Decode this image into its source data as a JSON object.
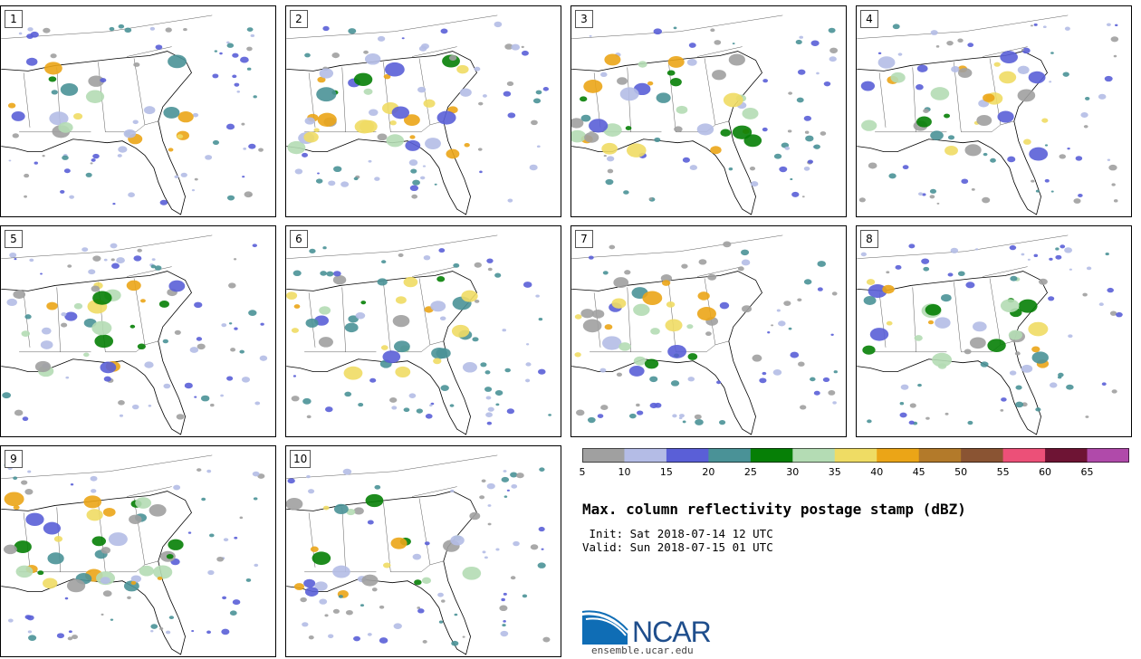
{
  "panels": [
    {
      "label": "1"
    },
    {
      "label": "2"
    },
    {
      "label": "3"
    },
    {
      "label": "4"
    },
    {
      "label": "5"
    },
    {
      "label": "6"
    },
    {
      "label": "7"
    },
    {
      "label": "8"
    },
    {
      "label": "9"
    },
    {
      "label": "10"
    }
  ],
  "legend": {
    "ticks": [
      "5",
      "10",
      "15",
      "20",
      "25",
      "30",
      "35",
      "40",
      "45",
      "50",
      "55",
      "60",
      "65"
    ],
    "colors": [
      "#a0a0a0",
      "#b4bce6",
      "#5a5fd7",
      "#4a9297",
      "#067f06",
      "#b4dcb4",
      "#efdc64",
      "#eba517",
      "#b37a2a",
      "#8a5433",
      "#ec5078",
      "#6e1434",
      "#b04aaa"
    ]
  },
  "title": "Max. column reflectivity postage stamp (dBZ)",
  "init": " Init: Sat 2018-07-14 12 UTC",
  "valid": "Valid: Sun 2018-07-15 01 UTC",
  "logo": {
    "text": "NCAR",
    "url": "ensemble.ucar.edu"
  },
  "map_region": "Southeastern United States"
}
